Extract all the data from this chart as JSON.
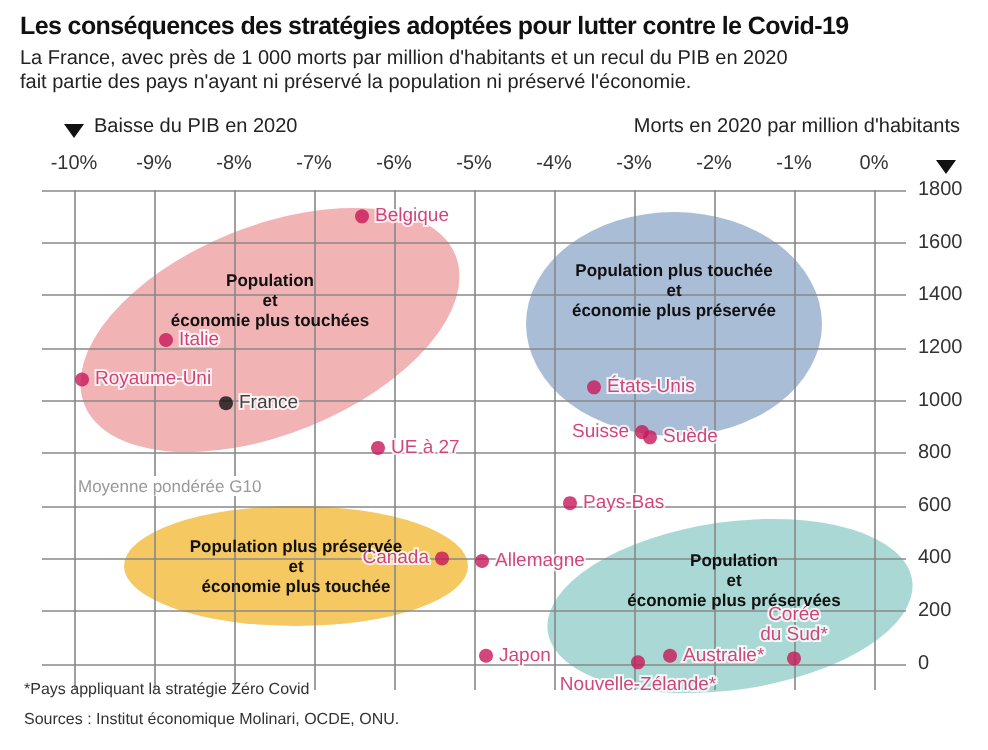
{
  "chart_data": {
    "type": "scatter",
    "title": "Les conséquences des stratégies adoptées pour lutter contre le Covid-19",
    "subtitle": "La France, avec près de 1 000 morts par million d'habitants et un recul du PIB en 2020\nfait partie des pays n'ayant ni préservé la population ni préservé l'économie.",
    "xlabel": "Baisse du PIB en 2020",
    "ylabel": "Morts en 2020 par million d'habitants",
    "series": [
      {
        "name": "Belgique",
        "color": "#c8185a",
        "x": [
          -6.4
        ],
        "values": [
          1700
        ]
      },
      {
        "name": "Italie",
        "color": "#c8185a",
        "x": [
          -8.85
        ],
        "values": [
          1230
        ]
      },
      {
        "name": "Royaume-Uni",
        "color": "#c8185a",
        "x": [
          -9.9
        ],
        "values": [
          1080
        ]
      },
      {
        "name": "France",
        "color": "#111111",
        "x": [
          -8.1
        ],
        "values": [
          990
        ]
      },
      {
        "name": "UE à 27",
        "color": "#c8185a",
        "x": [
          -6.2
        ],
        "values": [
          820
        ]
      },
      {
        "name": "États-Unis",
        "color": "#c8185a",
        "x": [
          -3.5
        ],
        "values": [
          1050
        ]
      },
      {
        "name": "Suisse",
        "color": "#c8185a",
        "x": [
          -2.9
        ],
        "values": [
          880
        ]
      },
      {
        "name": "Suède",
        "color": "#c8185a",
        "x": [
          -2.8
        ],
        "values": [
          860
        ]
      },
      {
        "name": "Pays-Bas",
        "color": "#c8185a",
        "x": [
          -3.8
        ],
        "values": [
          610
        ]
      },
      {
        "name": "Canada",
        "color": "#c8185a",
        "x": [
          -5.4
        ],
        "values": [
          400
        ]
      },
      {
        "name": "Allemagne",
        "color": "#c8185a",
        "x": [
          -4.9
        ],
        "values": [
          390
        ]
      },
      {
        "name": "Japon",
        "color": "#c8185a",
        "x": [
          -4.85
        ],
        "values": [
          30
        ]
      },
      {
        "name": "Nouvelle-Zélande*",
        "color": "#c8185a",
        "x": [
          -2.95
        ],
        "values": [
          5
        ]
      },
      {
        "name": "Australie*",
        "color": "#c8185a",
        "x": [
          -2.55
        ],
        "values": [
          30
        ]
      },
      {
        "name": "Corée\ndu Sud*",
        "color": "#c8185a",
        "x": [
          -1.0
        ],
        "values": [
          20
        ]
      }
    ],
    "xlim": [
      -10.4,
      0.4
    ],
    "xticks": [
      {
        "value": -10,
        "label": "-10%"
      },
      {
        "value": -9,
        "label": "-9%"
      },
      {
        "value": -8,
        "label": "-8%"
      },
      {
        "value": -7,
        "label": "-7%"
      },
      {
        "value": -6,
        "label": "-6%"
      },
      {
        "value": -5,
        "label": "-5%"
      },
      {
        "value": -4,
        "label": "-4%"
      },
      {
        "value": -3,
        "label": "-3%"
      },
      {
        "value": -2,
        "label": "-2%"
      },
      {
        "value": -1,
        "label": "-1%"
      },
      {
        "value": 0,
        "label": "0%"
      }
    ],
    "ylim": [
      -100,
      1800
    ],
    "yticks": [
      0,
      200,
      400,
      600,
      800,
      1000,
      1200,
      1400,
      1600,
      1800
    ],
    "annotations": [
      "Population\net\néconomie plus touchées",
      "Population plus touchée\net\néconomie plus préservée",
      "Population plus préservée\net\néconomie plus touchée",
      "Population\net\néconomie plus préservées",
      "*Pays appliquant la stratégie Zéro Covid",
      "Sources : Institut économique Molinari, OCDE, ONU.",
      "Moyenne pondérée G10"
    ],
    "grid": true,
    "legend": false,
    "marker": "circle"
  }
}
